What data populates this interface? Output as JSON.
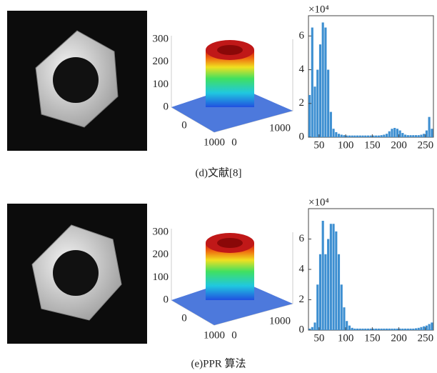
{
  "captions": [
    "(d)文献[8]",
    "(e)PPR 算法"
  ],
  "chart_data": [
    {
      "type": "surface",
      "zticks": [
        0,
        100,
        200,
        300
      ],
      "xticks": [
        0,
        1000
      ],
      "yticks": [
        0,
        1000
      ]
    },
    {
      "type": "histogram",
      "y_multiplier": "×10⁴",
      "color": "#3d8fd1",
      "bins": [
        30,
        35,
        40,
        45,
        50,
        55,
        60,
        65,
        70,
        75,
        80,
        85,
        90,
        95,
        100,
        105,
        110,
        115,
        120,
        125,
        130,
        135,
        140,
        145,
        150,
        155,
        160,
        165,
        170,
        175,
        180,
        185,
        190,
        195,
        200,
        205,
        210,
        215,
        220,
        225,
        230,
        235,
        240,
        245,
        250,
        255,
        260,
        265
      ],
      "values": [
        2.5,
        6.5,
        3,
        4,
        5.5,
        6.8,
        6.5,
        4,
        1.5,
        0.5,
        0.3,
        0.2,
        0.15,
        0.12,
        0.1,
        0.1,
        0.1,
        0.1,
        0.1,
        0.1,
        0.1,
        0.1,
        0.1,
        0.1,
        0.1,
        0.1,
        0.1,
        0.12,
        0.15,
        0.2,
        0.35,
        0.5,
        0.55,
        0.5,
        0.4,
        0.25,
        0.15,
        0.12,
        0.12,
        0.12,
        0.12,
        0.12,
        0.15,
        0.2,
        0.4,
        1.2,
        0.5
      ],
      "xlim": [
        30,
        265
      ],
      "xticks": [
        50,
        100,
        150,
        200,
        250
      ],
      "ylim": [
        0,
        7.2
      ],
      "yticks": [
        0,
        2,
        4,
        6
      ]
    },
    {
      "type": "surface",
      "zticks": [
        0,
        100,
        200,
        300
      ],
      "xticks": [
        0,
        1000
      ],
      "yticks": [
        0,
        1000
      ]
    },
    {
      "type": "histogram",
      "y_multiplier": "×10⁴",
      "color": "#3d8fd1",
      "bins": [
        30,
        35,
        40,
        45,
        50,
        55,
        60,
        65,
        70,
        75,
        80,
        85,
        90,
        95,
        100,
        105,
        110,
        115,
        120,
        125,
        130,
        135,
        140,
        145,
        150,
        155,
        160,
        165,
        170,
        175,
        180,
        185,
        190,
        195,
        200,
        205,
        210,
        215,
        220,
        225,
        230,
        235,
        240,
        245,
        250,
        255,
        260,
        265
      ],
      "values": [
        0.1,
        0.2,
        0.5,
        3,
        5,
        7.2,
        5,
        6,
        7,
        7,
        6.5,
        5,
        3,
        1.5,
        0.6,
        0.3,
        0.15,
        0.1,
        0.1,
        0.1,
        0.1,
        0.1,
        0.1,
        0.1,
        0.1,
        0.1,
        0.1,
        0.1,
        0.1,
        0.1,
        0.1,
        0.1,
        0.1,
        0.1,
        0.1,
        0.1,
        0.1,
        0.1,
        0.1,
        0.1,
        0.12,
        0.15,
        0.2,
        0.25,
        0.3,
        0.4,
        0.5
      ],
      "xlim": [
        30,
        265
      ],
      "xticks": [
        50,
        100,
        150,
        200,
        250
      ],
      "ylim": [
        0,
        8
      ],
      "yticks": [
        0,
        2,
        4,
        6
      ]
    }
  ]
}
